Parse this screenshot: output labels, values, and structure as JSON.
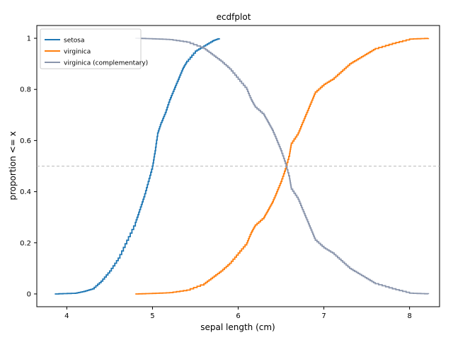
{
  "chart_data": {
    "type": "line",
    "title": "ecdfplot",
    "xlabel": "sepal length (cm)",
    "ylabel": "proportion <= x",
    "xlim": [
      3.65,
      8.35
    ],
    "ylim": [
      -0.05,
      1.05
    ],
    "xticks": [
      4,
      5,
      6,
      7,
      8
    ],
    "yticks": [
      0,
      0.2,
      0.4,
      0.6,
      0.8,
      1
    ],
    "xtick_labels": [
      "4",
      "5",
      "6",
      "7",
      "8"
    ],
    "ytick_labels": [
      "0",
      "0.2",
      "0.4",
      "0.6",
      "0.8",
      "1"
    ],
    "grid": false,
    "legend_position": "top-left",
    "reference_line": {
      "y": 0.5,
      "color": "#bbbbbb",
      "style": "dashed"
    },
    "series": [
      {
        "name": "setosa",
        "color": "#1f77b4",
        "points": [
          [
            3.86,
            0.0
          ],
          [
            4.1,
            0.003
          ],
          [
            4.2,
            0.01
          ],
          [
            4.3,
            0.02
          ],
          [
            4.4,
            0.05
          ],
          [
            4.5,
            0.09
          ],
          [
            4.6,
            0.14
          ],
          [
            4.7,
            0.21
          ],
          [
            4.8,
            0.28
          ],
          [
            4.85,
            0.33
          ],
          [
            4.9,
            0.38
          ],
          [
            4.95,
            0.44
          ],
          [
            5.0,
            0.5
          ],
          [
            5.03,
            0.56
          ],
          [
            5.06,
            0.63
          ],
          [
            5.1,
            0.67
          ],
          [
            5.15,
            0.71
          ],
          [
            5.2,
            0.76
          ],
          [
            5.25,
            0.8
          ],
          [
            5.3,
            0.84
          ],
          [
            5.35,
            0.88
          ],
          [
            5.4,
            0.91
          ],
          [
            5.5,
            0.95
          ],
          [
            5.6,
            0.97
          ],
          [
            5.7,
            0.99
          ],
          [
            5.78,
            1.0
          ]
        ]
      },
      {
        "name": "virginica",
        "color": "#ff7f0e",
        "points": [
          [
            4.8,
            0.0
          ],
          [
            5.0,
            0.002
          ],
          [
            5.2,
            0.005
          ],
          [
            5.4,
            0.015
          ],
          [
            5.6,
            0.04
          ],
          [
            5.7,
            0.065
          ],
          [
            5.8,
            0.09
          ],
          [
            5.9,
            0.12
          ],
          [
            6.0,
            0.16
          ],
          [
            6.1,
            0.2
          ],
          [
            6.15,
            0.24
          ],
          [
            6.2,
            0.27
          ],
          [
            6.3,
            0.3
          ],
          [
            6.35,
            0.33
          ],
          [
            6.4,
            0.36
          ],
          [
            6.45,
            0.4
          ],
          [
            6.5,
            0.44
          ],
          [
            6.55,
            0.49
          ],
          [
            6.6,
            0.55
          ],
          [
            6.62,
            0.59
          ],
          [
            6.7,
            0.63
          ],
          [
            6.75,
            0.67
          ],
          [
            6.8,
            0.71
          ],
          [
            6.85,
            0.75
          ],
          [
            6.9,
            0.79
          ],
          [
            7.0,
            0.82
          ],
          [
            7.1,
            0.84
          ],
          [
            7.2,
            0.87
          ],
          [
            7.3,
            0.9
          ],
          [
            7.4,
            0.92
          ],
          [
            7.5,
            0.94
          ],
          [
            7.6,
            0.96
          ],
          [
            7.8,
            0.98
          ],
          [
            8.0,
            0.997
          ],
          [
            8.22,
            1.0
          ]
        ]
      },
      {
        "name": "virginica (complementary)",
        "color": "#8a95ac",
        "points": [
          [
            4.8,
            1.0
          ],
          [
            5.0,
            0.998
          ],
          [
            5.2,
            0.995
          ],
          [
            5.4,
            0.985
          ],
          [
            5.6,
            0.96
          ],
          [
            5.7,
            0.935
          ],
          [
            5.8,
            0.91
          ],
          [
            5.9,
            0.88
          ],
          [
            6.0,
            0.84
          ],
          [
            6.1,
            0.8
          ],
          [
            6.15,
            0.76
          ],
          [
            6.2,
            0.73
          ],
          [
            6.3,
            0.7
          ],
          [
            6.35,
            0.67
          ],
          [
            6.4,
            0.64
          ],
          [
            6.45,
            0.6
          ],
          [
            6.5,
            0.56
          ],
          [
            6.55,
            0.51
          ],
          [
            6.6,
            0.45
          ],
          [
            6.62,
            0.41
          ],
          [
            6.7,
            0.37
          ],
          [
            6.75,
            0.33
          ],
          [
            6.8,
            0.29
          ],
          [
            6.85,
            0.25
          ],
          [
            6.9,
            0.21
          ],
          [
            7.0,
            0.18
          ],
          [
            7.1,
            0.16
          ],
          [
            7.2,
            0.13
          ],
          [
            7.3,
            0.1
          ],
          [
            7.4,
            0.08
          ],
          [
            7.5,
            0.06
          ],
          [
            7.6,
            0.04
          ],
          [
            7.8,
            0.02
          ],
          [
            8.0,
            0.003
          ],
          [
            8.22,
            0.0
          ]
        ]
      }
    ]
  }
}
